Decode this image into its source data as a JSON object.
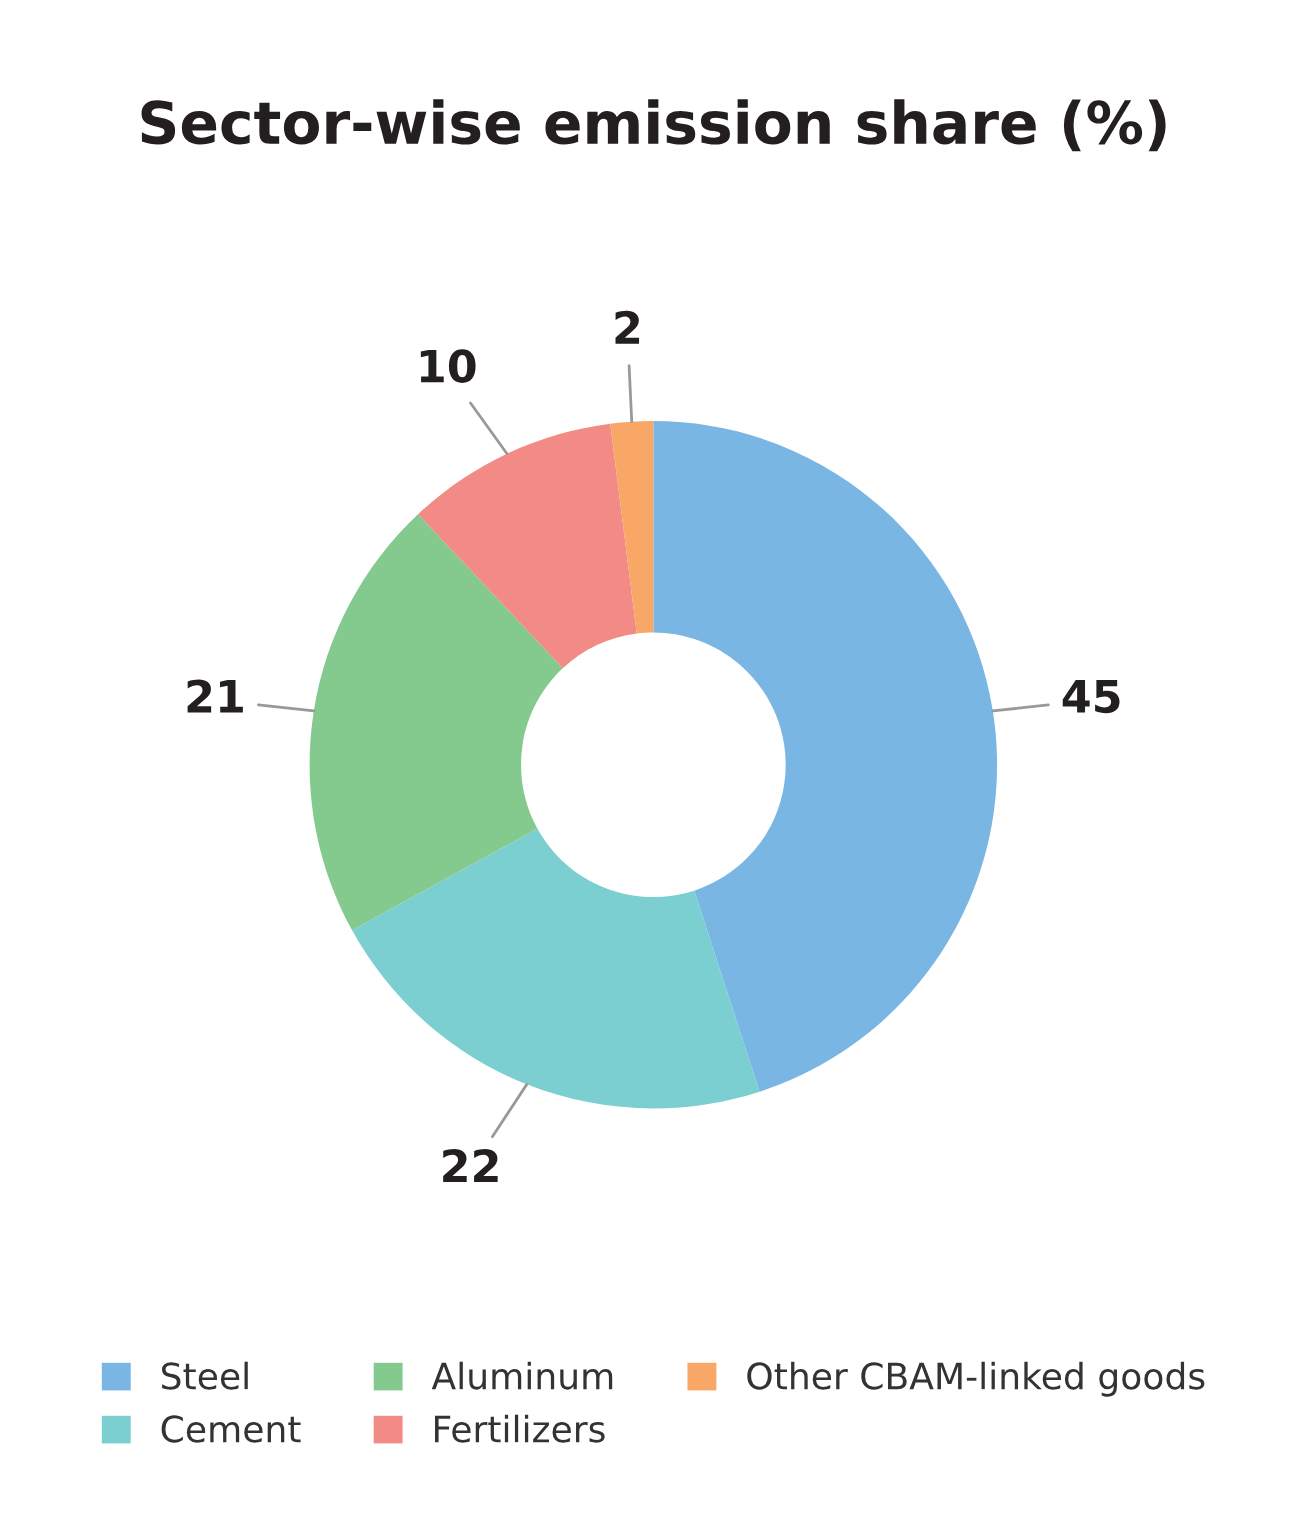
{
  "chart_data": {
    "type": "donut",
    "title": "Sector-wise emission share (%)",
    "categories": [
      "Steel",
      "Cement",
      "Aluminum",
      "Fertilizers",
      "Other CBAM-linked goods"
    ],
    "values": [
      45,
      22,
      21,
      10,
      2
    ],
    "colors": [
      "#7ab6e4",
      "#7bcfd1",
      "#84c98e",
      "#f28b85",
      "#f8a766"
    ],
    "data_labels": true,
    "legend": "bottom"
  }
}
